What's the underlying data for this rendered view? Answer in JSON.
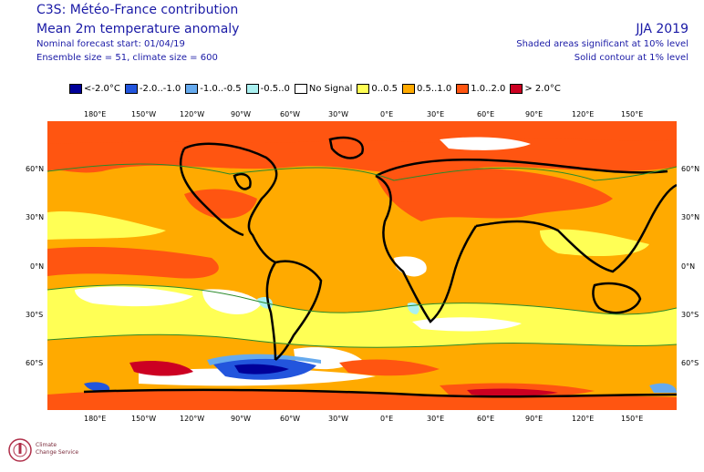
{
  "header": {
    "title": "C3S: Météo-France contribution",
    "subtitle": "Mean 2m temperature anomaly",
    "forecast_start": "Nominal forecast start: 01/04/19",
    "ensemble": "Ensemble size = 51, climate size = 600",
    "season": "JJA 2019",
    "note_shaded": "Shaded areas significant at 10% level",
    "note_contour": "Solid contour at 1% level"
  },
  "legend": [
    {
      "label": "<-2.0°C",
      "color": "#000099"
    },
    {
      "label": "-2.0..-1.0",
      "color": "#2255dd"
    },
    {
      "label": "-1.0..-0.5",
      "color": "#66aaee"
    },
    {
      "label": "-0.5..0",
      "color": "#aaf0f0"
    },
    {
      "label": "No Signal",
      "color": "#ffffff"
    },
    {
      "label": "0..0.5",
      "color": "#ffff55"
    },
    {
      "label": "0.5..1.0",
      "color": "#ffaa00"
    },
    {
      "label": "1.0..2.0",
      "color": "#ff5511"
    },
    {
      "label": "> 2.0°C",
      "color": "#cc0022"
    }
  ],
  "axes": {
    "lon_labels": [
      "180°E",
      "150°W",
      "120°W",
      "90°W",
      "60°W",
      "30°W",
      "0°E",
      "30°E",
      "60°E",
      "90°E",
      "120°E",
      "150°E"
    ],
    "lat_labels": [
      "60°N",
      "30°N",
      "0°N",
      "30°S",
      "60°S"
    ]
  },
  "logo": {
    "line1": "Climate",
    "line2": "Change Service"
  }
}
